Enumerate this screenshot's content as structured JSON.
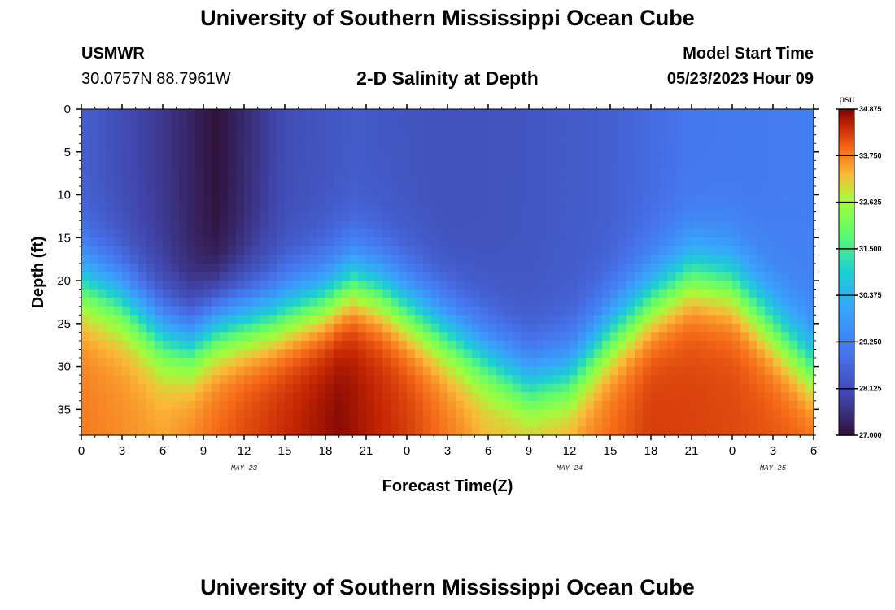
{
  "header": {
    "title": "University of Southern Mississippi Ocean Cube",
    "station": "USMWR",
    "coords": "30.0757N  88.7961W",
    "plot_title": "2-D Salinity at Depth",
    "model_start_label": "Model Start Time",
    "model_start_value": "05/23/2023 Hour 09"
  },
  "footer": {
    "title": "University of Southern Mississippi Ocean Cube"
  },
  "chart_data": {
    "type": "heatmap",
    "title": "2-D Salinity at Depth",
    "xlabel": "Forecast Time(Z)",
    "ylabel": "Depth (ft)",
    "x_tick_labels": [
      "0",
      "3",
      "6",
      "9",
      "12",
      "15",
      "18",
      "21",
      "0",
      "3",
      "6",
      "9",
      "12",
      "15",
      "18",
      "21",
      "0",
      "3",
      "6"
    ],
    "x_date_labels": [
      {
        "label": "MAY 23",
        "hour": 12
      },
      {
        "label": "MAY 24",
        "hour": 36
      },
      {
        "label": "MAY 25",
        "hour": 51
      }
    ],
    "xlim": [
      0,
      54
    ],
    "ylim": [
      0,
      38
    ],
    "y_ticks": [
      0,
      5,
      10,
      15,
      20,
      25,
      30,
      35
    ],
    "colorbar": {
      "unit": "psu",
      "min": 27.0,
      "max": 34.875,
      "tick_labels": [
        "34.875",
        "33.750",
        "32.625",
        "31.500",
        "30.375",
        "29.250",
        "28.125",
        "27.000"
      ]
    },
    "halocline_depth_ft_by_hour": [
      {
        "hour": 0,
        "depth": 20
      },
      {
        "hour": 3,
        "depth": 22
      },
      {
        "hour": 6,
        "depth": 26
      },
      {
        "hour": 8,
        "depth": 27
      },
      {
        "hour": 10,
        "depth": 25
      },
      {
        "hour": 14,
        "depth": 24
      },
      {
        "hour": 18,
        "depth": 22
      },
      {
        "hour": 20,
        "depth": 20
      },
      {
        "hour": 22,
        "depth": 21
      },
      {
        "hour": 26,
        "depth": 25
      },
      {
        "hour": 30,
        "depth": 29
      },
      {
        "hour": 33,
        "depth": 32
      },
      {
        "hour": 36,
        "depth": 31
      },
      {
        "hour": 39,
        "depth": 26
      },
      {
        "hour": 42,
        "depth": 22
      },
      {
        "hour": 45,
        "depth": 19
      },
      {
        "hour": 48,
        "depth": 20
      },
      {
        "hour": 51,
        "depth": 25
      },
      {
        "hour": 54,
        "depth": 30
      }
    ],
    "surface_salinity_by_hour": [
      {
        "hour": 0,
        "value": 28.5
      },
      {
        "hour": 6,
        "value": 27.7
      },
      {
        "hour": 10,
        "value": 27.0
      },
      {
        "hour": 15,
        "value": 28.1
      },
      {
        "hour": 20,
        "value": 28.4
      },
      {
        "hour": 27,
        "value": 28.2
      },
      {
        "hour": 33,
        "value": 28.3
      },
      {
        "hour": 39,
        "value": 28.5
      },
      {
        "hour": 45,
        "value": 29.0
      },
      {
        "hour": 54,
        "value": 29.2
      }
    ],
    "bottom_salinity_by_hour": [
      {
        "hour": 0,
        "value": 33.8
      },
      {
        "hour": 6,
        "value": 33.5
      },
      {
        "hour": 12,
        "value": 34.2
      },
      {
        "hour": 19,
        "value": 34.8
      },
      {
        "hour": 24,
        "value": 34.3
      },
      {
        "hour": 30,
        "value": 33.4
      },
      {
        "hour": 36,
        "value": 33.6
      },
      {
        "hour": 42,
        "value": 34.3
      },
      {
        "hour": 48,
        "value": 34.2
      },
      {
        "hour": 54,
        "value": 34.0
      }
    ]
  }
}
